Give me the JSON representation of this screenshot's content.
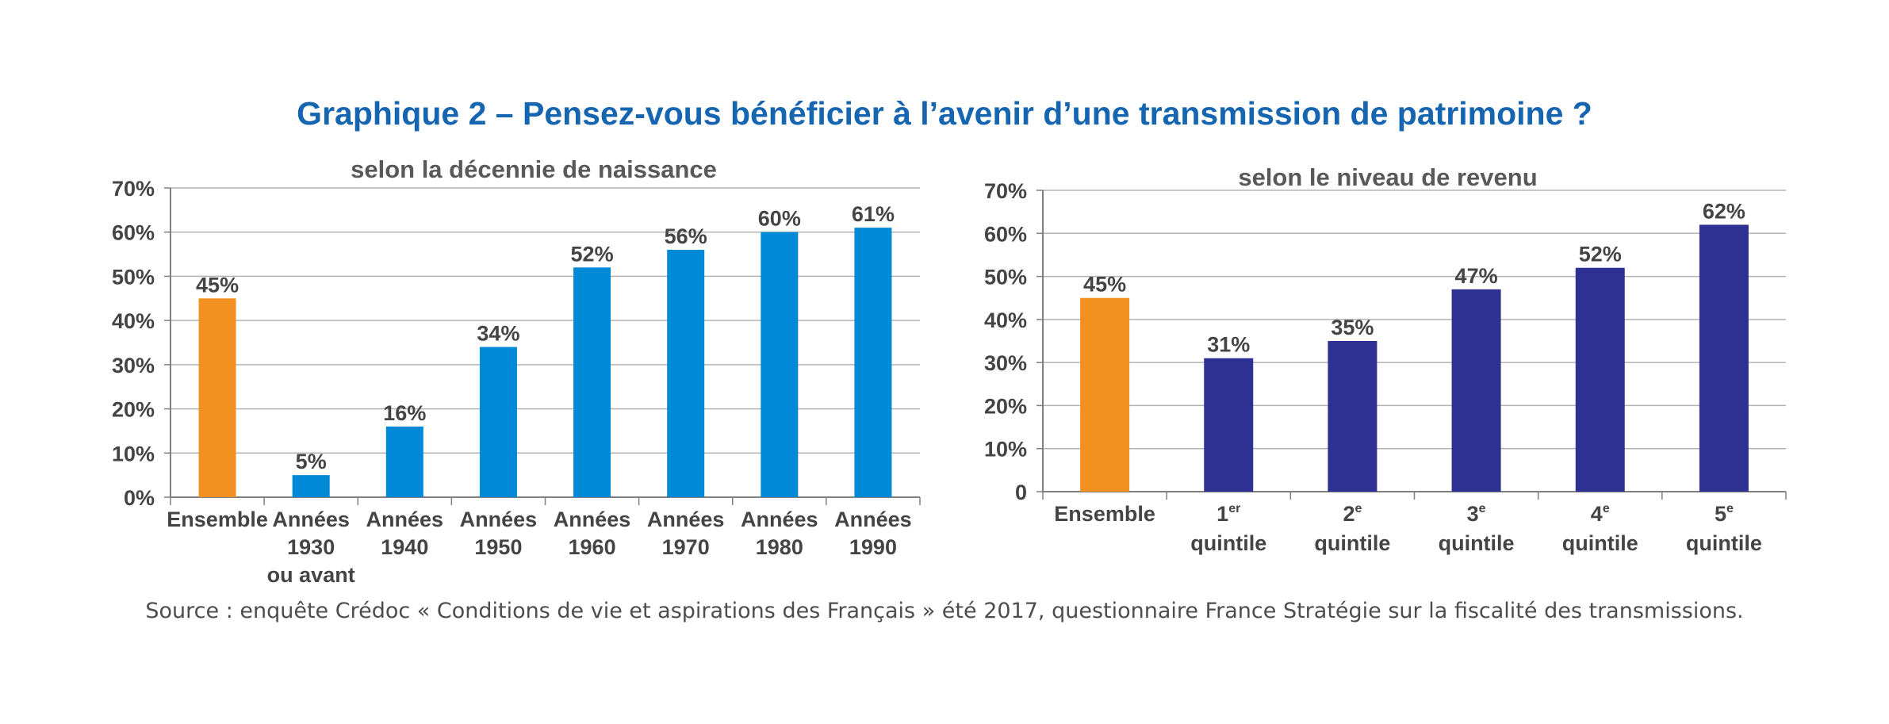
{
  "title": "Graphique 2 – Pensez-vous bénéficier à l’avenir d’une transmission de patrimoine ?",
  "source": "Source : enquête Crédoc « Conditions de vie et aspirations des Français » été 2017, questionnaire France Stratégie sur la fiscalité des transmissions.",
  "colors": {
    "title": "#1565b0",
    "highlight": "#f39120",
    "left_bars": "#0089d6",
    "right_bars": "#2e3192"
  },
  "chart_data": [
    {
      "type": "bar",
      "title": "selon la décennie de naissance",
      "xlabel": "",
      "ylabel": "",
      "ylim": [
        0,
        70
      ],
      "yticks": [
        "0%",
        "10%",
        "20%",
        "30%",
        "40%",
        "50%",
        "60%",
        "70%"
      ],
      "grid": true,
      "categories": [
        [
          "Ensemble"
        ],
        [
          "Années",
          "1930",
          "ou avant"
        ],
        [
          "Années",
          "1940"
        ],
        [
          "Années",
          "1950"
        ],
        [
          "Années",
          "1960"
        ],
        [
          "Années",
          "1970"
        ],
        [
          "Années",
          "1980"
        ],
        [
          "Années",
          "1990"
        ]
      ],
      "values": [
        45,
        5,
        16,
        34,
        52,
        56,
        60,
        61
      ],
      "labels": [
        "45%",
        "5%",
        "16%",
        "34%",
        "52%",
        "56%",
        "60%",
        "61%"
      ],
      "highlight_index": 0
    },
    {
      "type": "bar",
      "title": "selon le niveau de revenu",
      "xlabel": "",
      "ylabel": "",
      "ylim": [
        0,
        70
      ],
      "yticks": [
        "0",
        "10%",
        "20%",
        "30%",
        "40%",
        "50%",
        "60%",
        "70%"
      ],
      "grid": true,
      "categories": [
        {
          "main": "Ensemble",
          "sup": "",
          "line2": ""
        },
        {
          "main": "1",
          "sup": "er",
          "line2": "quintile"
        },
        {
          "main": "2",
          "sup": "e",
          "line2": "quintile"
        },
        {
          "main": "3",
          "sup": "e",
          "line2": "quintile"
        },
        {
          "main": "4",
          "sup": "e",
          "line2": "quintile"
        },
        {
          "main": "5",
          "sup": "e",
          "line2": "quintile"
        }
      ],
      "values": [
        45,
        31,
        35,
        47,
        52,
        62
      ],
      "labels": [
        "45%",
        "31%",
        "35%",
        "47%",
        "52%",
        "62%"
      ],
      "highlight_index": 0
    }
  ]
}
